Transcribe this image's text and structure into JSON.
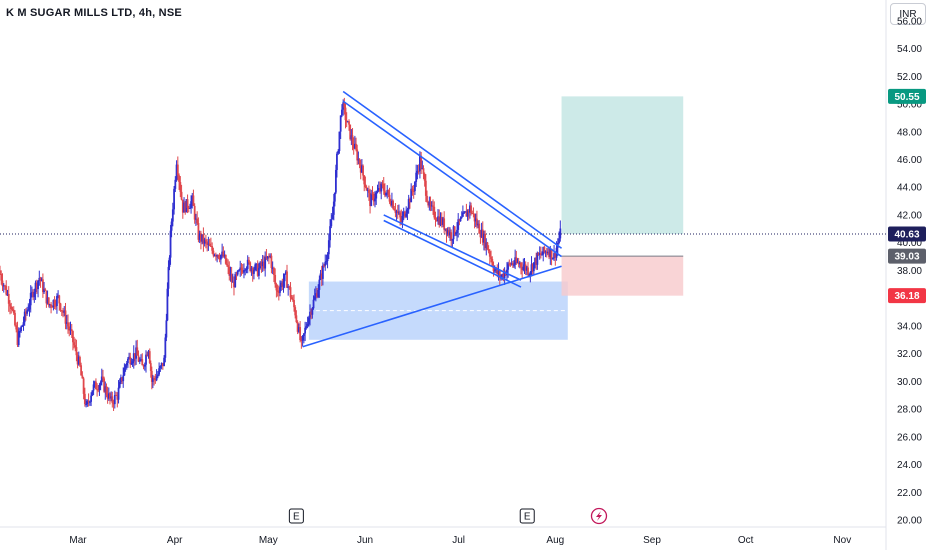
{
  "header": {
    "title": "K M SUGAR MILLS LTD, 4h, NSE"
  },
  "currency": "INR",
  "colors": {
    "up": "#2f2fd0",
    "down": "#e0474c",
    "trendline": "#2962ff",
    "profit_zone": "#b2dfdb",
    "loss_zone": "#f8c9cc",
    "demand_zone": "#bbd3fb",
    "tag_target": "#089981",
    "tag_current": "#1e1f5c",
    "tag_entry": "#5d606b",
    "tag_stop": "#f23645",
    "event_red": "#c2185b"
  },
  "chart_data": {
    "type": "candlestick",
    "ylim": [
      19.5,
      57.5
    ],
    "y_ticks": [
      "20.00",
      "22.00",
      "24.00",
      "26.00",
      "28.00",
      "30.00",
      "32.00",
      "34.00",
      "36.00",
      "38.00",
      "40.00",
      "42.00",
      "44.00",
      "46.00",
      "48.00",
      "50.00",
      "52.00",
      "54.00",
      "56.00"
    ],
    "x_ticks": [
      "Mar",
      "Apr",
      "May",
      "Jun",
      "Jul",
      "Aug",
      "Sep",
      "Oct",
      "Nov"
    ],
    "x_ticks_day": [
      36,
      67,
      97,
      128,
      158,
      189,
      220,
      250,
      281
    ],
    "xlim_day": [
      11,
      295
    ],
    "price_tags": [
      {
        "label": "50.55",
        "value": 50.55,
        "kind": "target"
      },
      {
        "label": "40.63",
        "value": 40.63,
        "kind": "current"
      },
      {
        "label": "39.03",
        "value": 39.03,
        "kind": "entry"
      },
      {
        "label": "36.18",
        "value": 36.18,
        "kind": "stop"
      }
    ],
    "anchors": [
      [
        11,
        38.0
      ],
      [
        15,
        35.5
      ],
      [
        17,
        33.0
      ],
      [
        22,
        36.5
      ],
      [
        24,
        37.5
      ],
      [
        27,
        35.5
      ],
      [
        30,
        36.0
      ],
      [
        34,
        33.5
      ],
      [
        37,
        31.0
      ],
      [
        39,
        28.0
      ],
      [
        41,
        29.5
      ],
      [
        44,
        30.0
      ],
      [
        47,
        28.5
      ],
      [
        49,
        29.0
      ],
      [
        52,
        31.5
      ],
      [
        55,
        32.0
      ],
      [
        57,
        31.0
      ],
      [
        59,
        32.5
      ],
      [
        60,
        30.0
      ],
      [
        62,
        30.5
      ],
      [
        64,
        31.5
      ],
      [
        65,
        36.5
      ],
      [
        66,
        40.5
      ],
      [
        68,
        46.0
      ],
      [
        70,
        42.5
      ],
      [
        73,
        43.0
      ],
      [
        75,
        40.5
      ],
      [
        79,
        39.5
      ],
      [
        83,
        39.0
      ],
      [
        86,
        37.0
      ],
      [
        90,
        38.5
      ],
      [
        94,
        38.0
      ],
      [
        98,
        39.0
      ],
      [
        100,
        36.5
      ],
      [
        103,
        37.5
      ],
      [
        106,
        35.0
      ],
      [
        108,
        32.5
      ],
      [
        110,
        34.5
      ],
      [
        113,
        36.5
      ],
      [
        116,
        39.0
      ],
      [
        118,
        42.0
      ],
      [
        119,
        45.0
      ],
      [
        121,
        50.0
      ],
      [
        124,
        47.5
      ],
      [
        127,
        45.5
      ],
      [
        130,
        43.0
      ],
      [
        134,
        44.0
      ],
      [
        137,
        43.0
      ],
      [
        140,
        41.5
      ],
      [
        144,
        44.0
      ],
      [
        146,
        46.0
      ],
      [
        149,
        42.5
      ],
      [
        153,
        41.5
      ],
      [
        156,
        40.5
      ],
      [
        159,
        41.5
      ],
      [
        162,
        42.5
      ],
      [
        165,
        41.0
      ],
      [
        168,
        39.5
      ],
      [
        170,
        38.0
      ],
      [
        172,
        37.5
      ],
      [
        175,
        38.5
      ],
      [
        178,
        38.5
      ],
      [
        181,
        38.0
      ],
      [
        184,
        39.0
      ],
      [
        187,
        39.5
      ],
      [
        189,
        39.0
      ],
      [
        191,
        40.63
      ]
    ],
    "overlays": {
      "channel_upper_a": [
        [
          121,
          50.9
        ],
        [
          191,
          39.6
        ]
      ],
      "channel_upper_b": [
        [
          121,
          50.2
        ],
        [
          191,
          39.0
        ]
      ],
      "channel_lower": [
        [
          134,
          42.0
        ],
        [
          178,
          37.3
        ]
      ],
      "channel_lower_b": [
        [
          134,
          41.6
        ],
        [
          178,
          36.8
        ]
      ],
      "support_line": [
        [
          108,
          32.5
        ],
        [
          191,
          38.3
        ]
      ],
      "demand_zone": {
        "from_day": 110,
        "to_day": 193,
        "low": 33.0,
        "high": 37.2,
        "mid": 35.1
      },
      "target_zone": {
        "from_day": 191,
        "to_day": 230,
        "low": 40.63,
        "high": 50.55
      },
      "stop_zone": {
        "from_day": 191,
        "to_day": 230,
        "low": 36.18,
        "high": 39.03
      }
    },
    "events": [
      {
        "label": "E",
        "day": 106,
        "kind": "earnings"
      },
      {
        "label": "E",
        "day": 180,
        "kind": "earnings"
      },
      {
        "label": "",
        "day": 203,
        "kind": "dividend"
      }
    ]
  }
}
